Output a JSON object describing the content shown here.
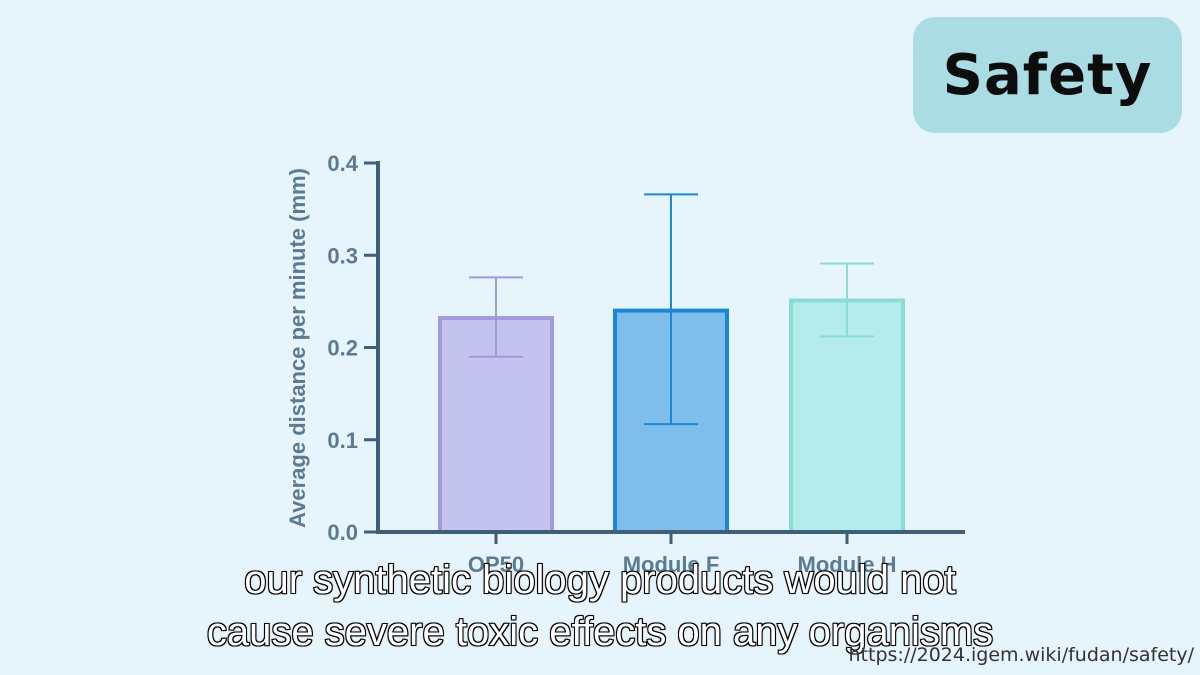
{
  "badge": {
    "label": "Safety",
    "color": "#a9dce3"
  },
  "chart_data": {
    "type": "bar",
    "ylabel": "Average distance per minute (mm)",
    "categories": [
      "OP50",
      "Module F",
      "Module H"
    ],
    "values": [
      0.232,
      0.24,
      0.251
    ],
    "errors_low": [
      0.19,
      0.117,
      0.212
    ],
    "errors_high": [
      0.276,
      0.366,
      0.291
    ],
    "ylim": [
      0.0,
      0.4
    ],
    "yticks": [
      "0.0",
      "0.1",
      "0.2",
      "0.3",
      "0.4"
    ],
    "grid": false,
    "colors": {
      "fill": [
        "#c4c2ee",
        "#7fbdeb",
        "#b4ecec"
      ],
      "stroke": [
        "#a29ad9",
        "#1b87d6",
        "#8adcd6"
      ],
      "axis": "#3f5f79",
      "text": "#5c7a91"
    }
  },
  "captions": {
    "line1": "our synthetic biology products would not",
    "line2": "cause severe toxic effects on any organisms"
  },
  "url": "https://2024.igem.wiki/fudan/safety/"
}
